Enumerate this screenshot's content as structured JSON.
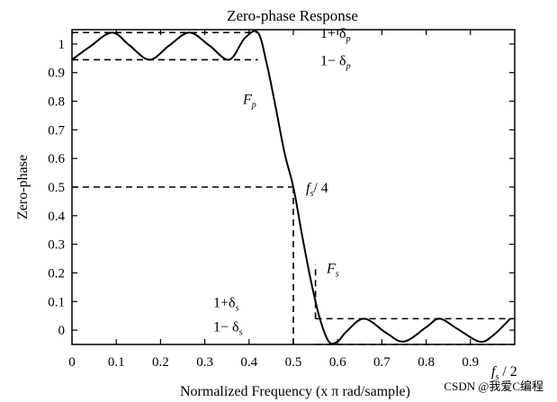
{
  "chart_data": {
    "type": "line",
    "title": "Zero-phase Response",
    "xlabel": "Normalized Frequency (x π rad/sample)",
    "ylabel": "Zero-phase",
    "xlim": [
      0,
      1.0
    ],
    "ylim": [
      -0.05,
      1.05
    ],
    "x_ticks": [
      "0",
      "0.1",
      "0.2",
      "0.3",
      "0.4",
      "0.5",
      "0.6",
      "0.7",
      "0.8",
      "0.9"
    ],
    "y_ticks": [
      "0",
      "0.1",
      "0.2",
      "0.3",
      "0.4",
      "0.5",
      "0.6",
      "0.7",
      "0.8",
      "0.9",
      "1"
    ],
    "grid": false,
    "series": [
      {
        "x": [
          0,
          0.04,
          0.09,
          0.13,
          0.175,
          0.22,
          0.265,
          0.31,
          0.355,
          0.39,
          0.42,
          0.44,
          0.46,
          0.48,
          0.5,
          0.52,
          0.54,
          0.56,
          0.58,
          0.6,
          0.62,
          0.66,
          0.71,
          0.75,
          0.8,
          0.83,
          0.87,
          0.92,
          0.95,
          0.99
        ],
        "y": [
          0.945,
          0.99,
          1.04,
          0.995,
          0.945,
          0.995,
          1.04,
          0.995,
          0.945,
          1.02,
          1.04,
          0.93,
          0.78,
          0.62,
          0.5,
          0.33,
          0.17,
          0.04,
          -0.04,
          -0.04,
          -0.005,
          0.04,
          -0.01,
          -0.04,
          0.01,
          0.04,
          0.005,
          -0.04,
          -0.02,
          0.04
        ]
      }
    ],
    "reference_lines": [
      {
        "y": 1.04,
        "x_range": [
          0,
          0.42
        ],
        "label": "1+ δ",
        "sub": "p"
      },
      {
        "y": 0.945,
        "x_range": [
          0,
          0.42
        ],
        "label": "1− δ",
        "sub": "p"
      },
      {
        "y": 0.5,
        "x_range": [
          0,
          0.5
        ],
        "label": "/ 4",
        "label_prefix": "f",
        "sub": "s"
      },
      {
        "x": 0.5,
        "y_range": [
          -0.05,
          0.5
        ]
      },
      {
        "x": 0.55,
        "y_range": [
          0.04,
          0.23
        ],
        "label": "F",
        "sub": "s"
      },
      {
        "y": 0.04,
        "x_range": [
          0.55,
          1.0
        ],
        "label": "1+δ",
        "sub": "s"
      },
      {
        "y": -0.05,
        "x_range": [
          0.55,
          1.0
        ],
        "label": "1− δ",
        "sub": "s"
      }
    ],
    "annotations": [
      {
        "text": "F",
        "sub": "p",
        "x": 0.445,
        "y": 0.77
      },
      {
        "text": "f",
        "sub": "s",
        "suffix": "/ 2",
        "x": 1.0,
        "y": -0.22
      }
    ]
  },
  "watermark": "CSDN @我爱C编程"
}
